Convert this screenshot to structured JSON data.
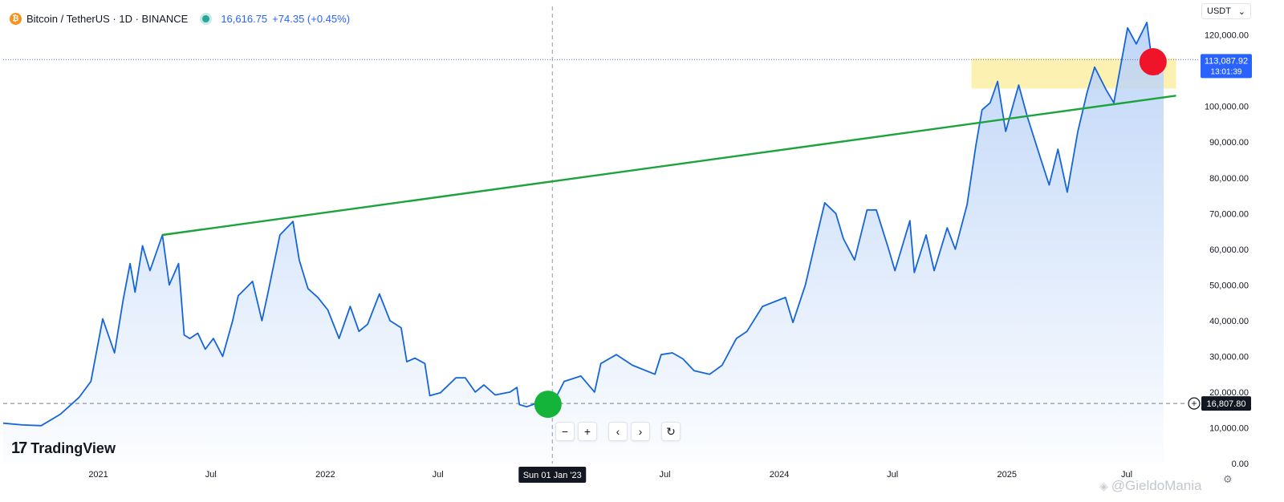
{
  "header": {
    "title": "Bitcoin / TetherUS · 1D · BINANCE",
    "price": "16,616.75",
    "change": "+74.35 (+0.45%)",
    "coin_icon": "bitcoin-icon"
  },
  "currency": {
    "label": "USDT",
    "dropdown_icon": "chevron-down-icon"
  },
  "price_labels": {
    "current_price": "113,087.92",
    "countdown": "13:01:39",
    "crosshair_price": "16,807.80"
  },
  "crosshair": {
    "date_label": "Sun 01 Jan '23"
  },
  "toolbar": {
    "zoom_out": "−",
    "zoom_in": "+",
    "scroll_left": "‹",
    "scroll_right": "›",
    "reset": "↻"
  },
  "branding": {
    "logo_text": "TradingView",
    "logo_mark": "17"
  },
  "watermark": {
    "text": "@GieldoMania"
  },
  "colors": {
    "line": "#1565d8",
    "area_top": "#bcd4f7",
    "trendline": "#1ca33c",
    "zone": "#fbeea2",
    "green_marker": "#14b33a",
    "red_marker": "#f0142b",
    "price_tag": "#2962ff",
    "crosshair_tag": "#131722"
  },
  "chart_data": {
    "type": "area",
    "title": "",
    "xlabel": "",
    "ylabel": "",
    "y_unit": "USDT",
    "ylim": [
      0,
      128000
    ],
    "xlim": [
      "2020-08-01",
      "2025-09-10"
    ],
    "x_ticks": [
      "2021",
      "Jul",
      "2022",
      "Jul",
      "Jul",
      "2024",
      "Jul",
      "2025"
    ],
    "x_tick_dates": [
      "2021-01-01",
      "2021-07-01",
      "2022-01-01",
      "2022-07-01",
      "2023-07-01",
      "2024-01-01",
      "2024-07-01",
      "2025-01-01"
    ],
    "y_ticks": [
      "0.00",
      "10,000.00",
      "20,000.00",
      "30,000.00",
      "40,000.00",
      "50,000.00",
      "60,000.00",
      "70,000.00",
      "80,000.00",
      "90,000.00",
      "100,000.00",
      "110,000.00",
      "120,000.00"
    ],
    "y_tick_values": [
      0,
      10000,
      20000,
      30000,
      40000,
      50000,
      60000,
      70000,
      80000,
      90000,
      100000,
      110000,
      120000
    ],
    "series": [
      {
        "x": [
          "2020-08-01",
          "2020-09-01",
          "2020-10-01",
          "2020-11-01",
          "2020-12-01",
          "2020-12-20",
          "2021-01-08",
          "2021-01-27",
          "2021-02-10",
          "2021-02-21",
          "2021-03-01",
          "2021-03-13",
          "2021-03-25",
          "2021-04-14",
          "2021-04-25",
          "2021-05-10",
          "2021-05-19",
          "2021-05-28",
          "2021-06-10",
          "2021-06-22",
          "2021-07-05",
          "2021-07-20",
          "2021-08-05",
          "2021-08-14",
          "2021-09-06",
          "2021-09-21",
          "2021-10-01",
          "2021-10-20",
          "2021-11-10",
          "2021-11-20",
          "2021-12-04",
          "2021-12-20",
          "2022-01-05",
          "2022-01-23",
          "2022-02-10",
          "2022-02-24",
          "2022-03-10",
          "2022-03-29",
          "2022-04-15",
          "2022-05-03",
          "2022-05-12",
          "2022-05-25",
          "2022-06-10",
          "2022-06-18",
          "2022-07-05",
          "2022-07-30",
          "2022-08-14",
          "2022-08-30",
          "2022-09-13",
          "2022-10-01",
          "2022-10-25",
          "2022-11-05",
          "2022-11-09",
          "2022-11-21",
          "2022-12-10",
          "2023-01-01",
          "2023-01-20",
          "2023-02-16",
          "2023-03-10",
          "2023-03-20",
          "2023-04-14",
          "2023-05-10",
          "2023-06-15",
          "2023-06-25",
          "2023-07-13",
          "2023-07-30",
          "2023-08-17",
          "2023-09-11",
          "2023-10-01",
          "2023-10-24",
          "2023-11-10",
          "2023-12-05",
          "2024-01-11",
          "2024-01-23",
          "2024-02-12",
          "2024-02-28",
          "2024-03-14",
          "2024-04-01",
          "2024-04-13",
          "2024-05-01",
          "2024-05-21",
          "2024-06-05",
          "2024-06-24",
          "2024-07-05",
          "2024-07-29",
          "2024-08-05",
          "2024-08-24",
          "2024-09-06",
          "2024-09-27",
          "2024-10-10",
          "2024-10-29",
          "2024-11-12",
          "2024-11-22",
          "2024-12-05",
          "2024-12-17",
          "2024-12-30",
          "2025-01-20",
          "2025-02-03",
          "2025-02-25",
          "2025-03-10",
          "2025-03-24",
          "2025-04-08",
          "2025-04-25",
          "2025-05-10",
          "2025-05-22",
          "2025-06-10",
          "2025-06-22",
          "2025-07-14",
          "2025-07-28",
          "2025-08-14",
          "2025-08-22",
          "2025-09-01",
          "2025-09-10"
        ],
        "y": [
          11300,
          10800,
          10600,
          13800,
          18500,
          23000,
          40500,
          31000,
          46000,
          56000,
          48000,
          61000,
          54000,
          64000,
          50000,
          56000,
          36000,
          35000,
          36500,
          32000,
          35000,
          30000,
          40000,
          47000,
          51000,
          40000,
          48000,
          64000,
          67800,
          57000,
          49000,
          46500,
          43000,
          35000,
          44000,
          37000,
          39000,
          47500,
          40000,
          38000,
          28500,
          29500,
          28000,
          19000,
          19800,
          24000,
          24000,
          20000,
          22000,
          19200,
          20000,
          21300,
          16500,
          15900,
          17100,
          16500,
          23000,
          24500,
          20000,
          28000,
          30500,
          27500,
          25000,
          30500,
          31000,
          29300,
          26000,
          25000,
          27500,
          35000,
          37000,
          44000,
          46500,
          39500,
          50000,
          62000,
          73000,
          70000,
          63000,
          57000,
          71000,
          71000,
          60500,
          54000,
          68000,
          53500,
          64000,
          54000,
          66000,
          60000,
          72500,
          89000,
          99000,
          101000,
          107000,
          93000,
          106000,
          97000,
          85000,
          78000,
          88000,
          76000,
          93000,
          104000,
          111000,
          104500,
          101000,
          122000,
          117500,
          123500,
          113000,
          109000,
          113100
        ]
      }
    ],
    "annotations": {
      "trendline": {
        "start": [
          "2021-04-14",
          64000
        ],
        "end": [
          "2025-09-30",
          103000
        ]
      },
      "resistance_zone": {
        "x": [
          "2024-11-05",
          "2025-09-30"
        ],
        "y": [
          105000,
          113500
        ]
      },
      "green_marker": {
        "x": "2022-12-25",
        "y": 16600
      },
      "red_marker": {
        "x": "2025-08-24",
        "y": 112500
      },
      "current_price_line": 113087.92,
      "crosshair_price_line": 16807.8,
      "crosshair_date": "2023-01-01"
    },
    "grid": false,
    "legend": "none"
  }
}
